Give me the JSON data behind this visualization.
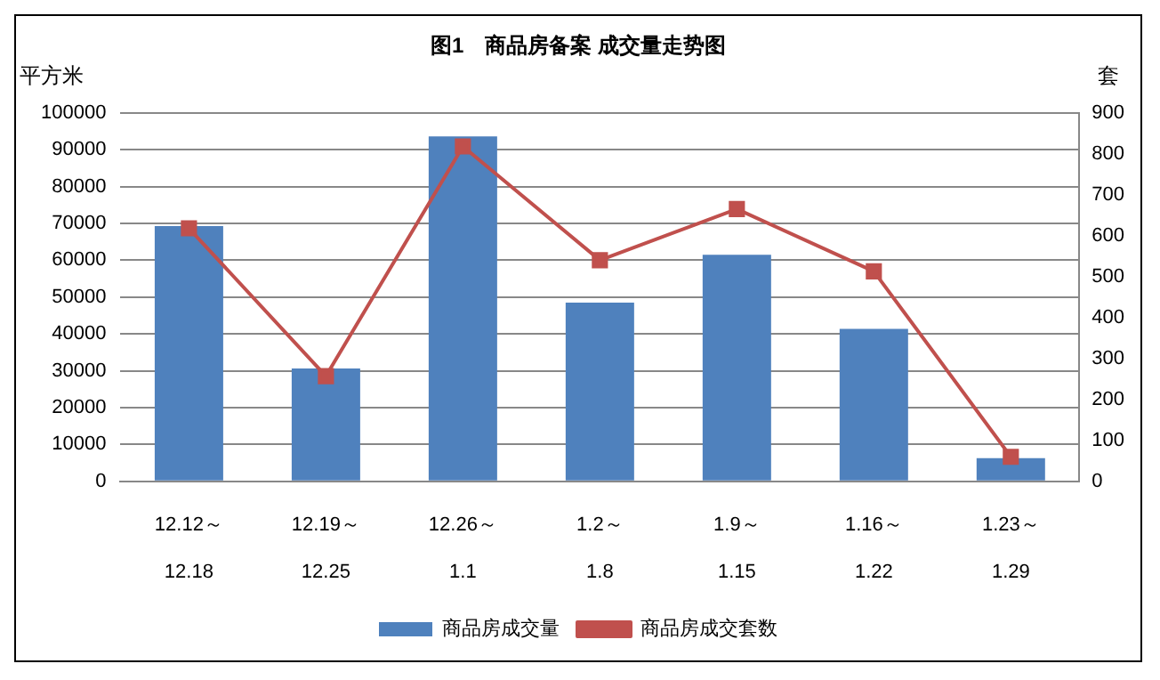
{
  "chart_data": {
    "type": "bar",
    "title": "图1　商品房备案 成交量走势图",
    "ylabel": "平方米",
    "y2label": "套",
    "categories": [
      "12.12～\n12.18",
      "12.19～\n12.25",
      "12.26～\n1.1",
      "1.2～\n1.8",
      "1.9～\n1.15",
      "1.16～\n1.22",
      "1.23～\n1.29"
    ],
    "series": [
      {
        "name": "商品房成交量",
        "color": "#4f81bd",
        "values": [
          69300,
          30600,
          93600,
          48500,
          61500,
          41400,
          6300
        ]
      },
      {
        "name": "商品房成交套数",
        "type": "line",
        "axis": "y2",
        "color": "#c0504d",
        "marker": "square",
        "values": [
          618,
          257,
          818,
          540,
          665,
          513,
          60
        ]
      }
    ],
    "ylim": [
      0,
      100000
    ],
    "yticks": [
      0,
      10000,
      20000,
      30000,
      40000,
      50000,
      60000,
      70000,
      80000,
      90000,
      100000
    ],
    "y2lim": [
      0,
      900
    ],
    "y2ticks": [
      0,
      100,
      200,
      300,
      400,
      500,
      600,
      700,
      800,
      900
    ],
    "grid": "y",
    "legend": "bottom"
  }
}
